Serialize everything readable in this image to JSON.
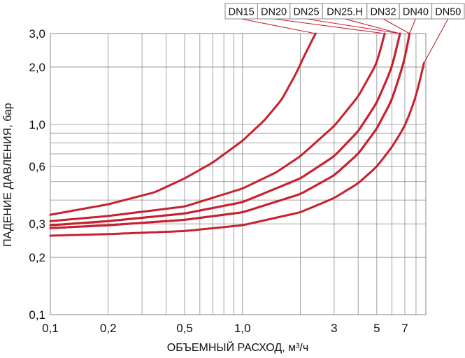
{
  "chart_data": {
    "type": "line",
    "xlabel": "ОБЪЕМНЫЙ РАСХОД, м³/ч",
    "ylabel": "ПАДЕНИЕ ДАВЛЕНИЯ, бар",
    "x_scale": "log",
    "y_scale": "log",
    "xlim": [
      0.1,
      9
    ],
    "ylim": [
      0.1,
      3
    ],
    "x_ticks": [
      {
        "value": 0.1,
        "label": "0,1"
      },
      {
        "value": 0.2,
        "label": "0,2"
      },
      {
        "value": 0.5,
        "label": "0,5"
      },
      {
        "value": 1.0,
        "label": "1,0"
      },
      {
        "value": 3,
        "label": "3"
      },
      {
        "value": 5,
        "label": "5"
      },
      {
        "value": 7,
        "label": "7"
      }
    ],
    "y_ticks": [
      {
        "value": 0.1,
        "label": "0,1"
      },
      {
        "value": 0.2,
        "label": "0,2"
      },
      {
        "value": 0.3,
        "label": "0,3"
      },
      {
        "value": 0.6,
        "label": "0,6"
      },
      {
        "value": 1.0,
        "label": "1,0"
      },
      {
        "value": 2.0,
        "label": "2,0"
      },
      {
        "value": 3.0,
        "label": "3,0"
      }
    ],
    "grid": true,
    "legend_position": "top-right",
    "legend": [
      "DN15",
      "DN20",
      "DN25",
      "DN25.H",
      "DN32",
      "DN40",
      "DN50"
    ],
    "series": [
      {
        "name": "DN15",
        "x": [
          0.1,
          0.2,
          0.35,
          0.5,
          0.7,
          1.0,
          1.3,
          1.6,
          1.9,
          2.1,
          2.4
        ],
        "y": [
          0.335,
          0.38,
          0.44,
          0.52,
          0.63,
          0.82,
          1.05,
          1.35,
          1.85,
          2.3,
          3.0
        ]
      },
      {
        "name": "DN20",
        "x": [
          0.1,
          0.2,
          0.5,
          1.0,
          1.5,
          2.0,
          3.0,
          4.0,
          5.0,
          5.5
        ],
        "y": [
          0.31,
          0.33,
          0.37,
          0.46,
          0.56,
          0.68,
          0.98,
          1.4,
          2.1,
          3.0
        ]
      },
      {
        "name": "DN25",
        "x": [
          0.1,
          0.2,
          0.5,
          1.0,
          2.0,
          3.0,
          4.0,
          5.0,
          6.0,
          6.6
        ],
        "y": [
          0.295,
          0.31,
          0.34,
          0.39,
          0.52,
          0.68,
          0.92,
          1.3,
          2.0,
          3.0
        ]
      },
      {
        "name": "DN25.H",
        "x": [
          0.1,
          0.2,
          0.5,
          1.0,
          2.0,
          3.0,
          4.0,
          5.0,
          6.0,
          6.6
        ],
        "y": [
          0.295,
          0.31,
          0.34,
          0.39,
          0.52,
          0.68,
          0.92,
          1.3,
          2.0,
          3.0
        ]
      },
      {
        "name": "DN32",
        "x": [
          0.1,
          0.2,
          0.5,
          1.0,
          2.0,
          3.0,
          4.0,
          5.0,
          6.0,
          7.0,
          7.4
        ],
        "y": [
          0.285,
          0.295,
          0.315,
          0.345,
          0.43,
          0.54,
          0.7,
          0.95,
          1.35,
          2.2,
          3.0
        ]
      },
      {
        "name": "DN40",
        "x": [
          0.1,
          0.2,
          0.5,
          1.0,
          2.0,
          3.0,
          4.0,
          5.0,
          6.0,
          7.0,
          7.4
        ],
        "y": [
          0.285,
          0.295,
          0.315,
          0.345,
          0.43,
          0.54,
          0.7,
          0.95,
          1.35,
          2.2,
          3.0
        ]
      },
      {
        "name": "DN50",
        "x": [
          0.1,
          0.2,
          0.5,
          1.0,
          2.0,
          3.0,
          4.0,
          5.0,
          6.0,
          7.0,
          8.0,
          8.8
        ],
        "y": [
          0.26,
          0.265,
          0.275,
          0.295,
          0.345,
          0.41,
          0.49,
          0.6,
          0.76,
          0.98,
          1.4,
          2.1
        ]
      }
    ],
    "colors": {
      "curve": "#c8202f",
      "grid": "#8a8a8a",
      "text": "#111111",
      "background": "#ffffff"
    }
  }
}
